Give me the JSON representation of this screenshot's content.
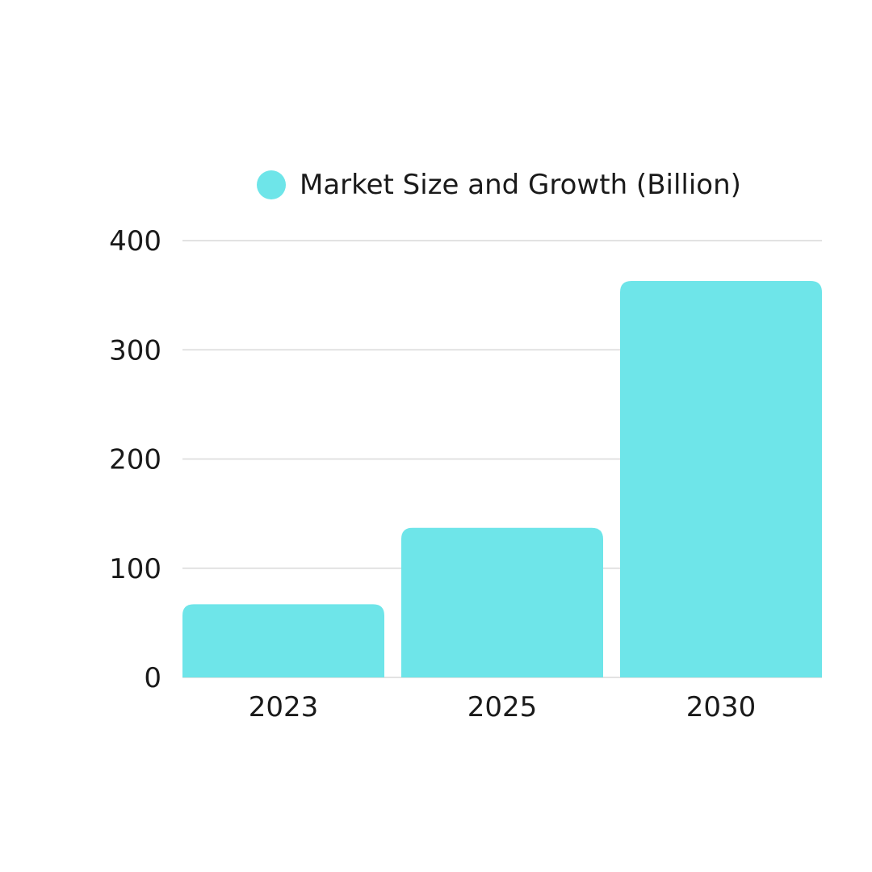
{
  "chart_data": {
    "type": "bar",
    "categories": [
      "2023",
      "2025",
      "2030"
    ],
    "series": [
      {
        "name": "Market Size and Growth (Billion)",
        "values": [
          67,
          137,
          363
        ],
        "color": "#6ee5e9"
      }
    ],
    "yticks": [
      0,
      100,
      200,
      300,
      400
    ],
    "ylim": [
      0,
      400
    ],
    "title": "",
    "xlabel": "",
    "ylabel": "",
    "grid": true,
    "legend": "top-center",
    "colors": {
      "bar": "#6ee5e9",
      "grid": "#d9d9d9",
      "text": "#1a1a1a",
      "background": "#ffffff"
    }
  }
}
